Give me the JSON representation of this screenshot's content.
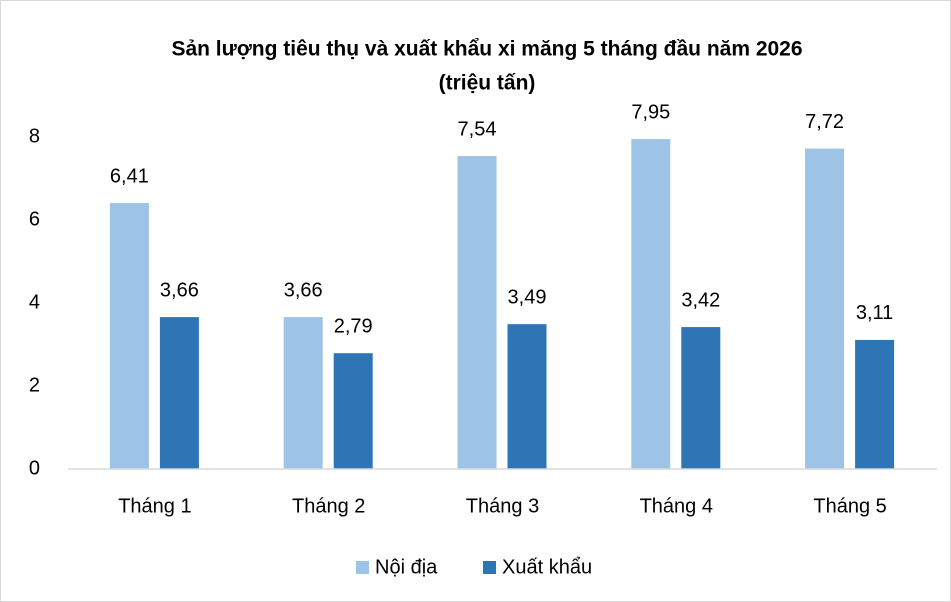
{
  "chart_data": {
    "type": "bar",
    "title": "Sản lượng tiêu thụ và xuất khẩu xi măng 5 tháng đầu năm 2026",
    "subtitle": "(triệu tấn)",
    "categories": [
      "Tháng 1",
      "Tháng 2",
      "Tháng 3",
      "Tháng 4",
      "Tháng 5"
    ],
    "series": [
      {
        "name": "Nội địa",
        "color": "#9dc3e6",
        "values": [
          6.41,
          3.66,
          7.54,
          7.95,
          7.72
        ],
        "value_labels": [
          "6,41",
          "3,66",
          "7,54",
          "7,95",
          "7,72"
        ]
      },
      {
        "name": "Xuất khẩu",
        "color": "#2e75b6",
        "values": [
          3.66,
          2.79,
          3.49,
          3.42,
          3.11
        ],
        "value_labels": [
          "3,66",
          "2,79",
          "3,49",
          "3,42",
          "3,11"
        ]
      }
    ],
    "ylim": [
      0,
      8
    ],
    "yticks": [
      0,
      2,
      4,
      6,
      8
    ],
    "grid": false,
    "legend": "bottom"
  }
}
